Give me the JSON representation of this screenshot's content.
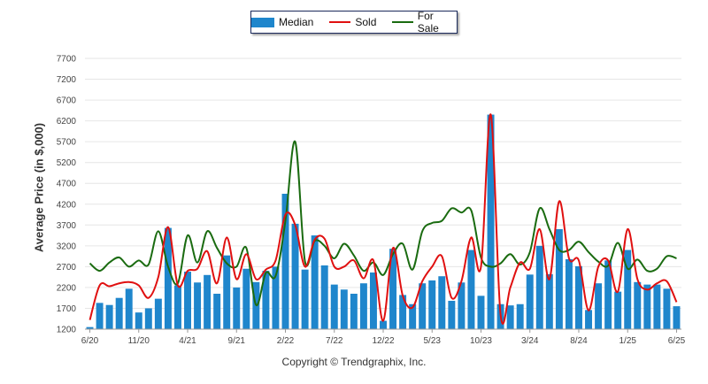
{
  "legend": {
    "median_label": "Median",
    "sold_label": "Sold",
    "for_sale_label": "For Sale"
  },
  "colors": {
    "median_bar": "#1f86cc",
    "sold_line": "#e01010",
    "for_sale_line": "#1a6b10",
    "grid": "#e6e6e6"
  },
  "footer": "Copyright © Trendgraphix, Inc.",
  "chart_data": {
    "type": "bar",
    "ylabel": "Average Price (in $,000)",
    "ylim": [
      1200,
      7700
    ],
    "yticks": [
      1200,
      1700,
      2200,
      2700,
      3200,
      3700,
      4200,
      4700,
      5200,
      5700,
      6200,
      6700,
      7200,
      7700
    ],
    "xtick_labels": [
      {
        "index": 0,
        "label": "6/20"
      },
      {
        "index": 5,
        "label": "11/20"
      },
      {
        "index": 10,
        "label": "4/21"
      },
      {
        "index": 15,
        "label": "9/21"
      },
      {
        "index": 20,
        "label": "2/22"
      },
      {
        "index": 25,
        "label": "7/22"
      },
      {
        "index": 30,
        "label": "12/22"
      },
      {
        "index": 35,
        "label": "5/23"
      },
      {
        "index": 40,
        "label": "10/23"
      },
      {
        "index": 45,
        "label": "3/24"
      },
      {
        "index": 50,
        "label": "8/24"
      },
      {
        "index": 55,
        "label": "1/25"
      },
      {
        "index": 60,
        "label": "6/25"
      }
    ],
    "legend_position": "top-center",
    "grid": true,
    "series": [
      {
        "name": "Median",
        "kind": "bar",
        "values": [
          1250,
          1830,
          1780,
          1950,
          2170,
          1600,
          1700,
          1930,
          3630,
          2250,
          2580,
          2320,
          2500,
          2050,
          2970,
          2200,
          2650,
          2330,
          2600,
          2700,
          4450,
          3730,
          2630,
          3450,
          2730,
          2270,
          2150,
          2050,
          2300,
          2560,
          1400,
          3130,
          2020,
          1800,
          2300,
          2370,
          2470,
          1880,
          2320,
          3100,
          2000,
          6350,
          1800,
          1770,
          1800,
          2510,
          3200,
          2520,
          3600,
          2880,
          2710,
          1660,
          2300,
          2850,
          2100,
          3100,
          2330,
          2270,
          2270,
          2170,
          1750
        ]
      },
      {
        "name": "Sold",
        "kind": "line",
        "values": [
          1420,
          2250,
          2230,
          2300,
          2330,
          2250,
          1950,
          2450,
          3650,
          2250,
          2600,
          2650,
          3070,
          2300,
          3400,
          2400,
          3000,
          2400,
          2630,
          2850,
          3950,
          3700,
          2700,
          3350,
          3370,
          2700,
          2700,
          2850,
          2420,
          2850,
          1400,
          3150,
          2000,
          1720,
          2350,
          2700,
          2950,
          1950,
          2350,
          3400,
          2700,
          6350,
          1550,
          2200,
          2800,
          2650,
          3600,
          2400,
          4270,
          2900,
          2850,
          1650,
          2700,
          2850,
          2100,
          3600,
          2400,
          2150,
          2300,
          2350,
          1850
        ]
      },
      {
        "name": "For Sale",
        "kind": "line",
        "values": [
          2780,
          2600,
          2800,
          2920,
          2700,
          2850,
          2750,
          3550,
          2700,
          2300,
          3450,
          2800,
          3550,
          3150,
          2780,
          2700,
          3150,
          1780,
          2550,
          2480,
          3800,
          5700,
          2830,
          3320,
          3200,
          2900,
          3250,
          2970,
          2600,
          2800,
          2500,
          3000,
          3250,
          2630,
          3550,
          3750,
          3800,
          4100,
          4000,
          4050,
          2920,
          2700,
          2780,
          3000,
          2750,
          3050,
          4100,
          3600,
          3100,
          3100,
          3300,
          3050,
          2820,
          2720,
          3270,
          2650,
          2870,
          2600,
          2650,
          2950,
          2900
        ]
      }
    ]
  }
}
